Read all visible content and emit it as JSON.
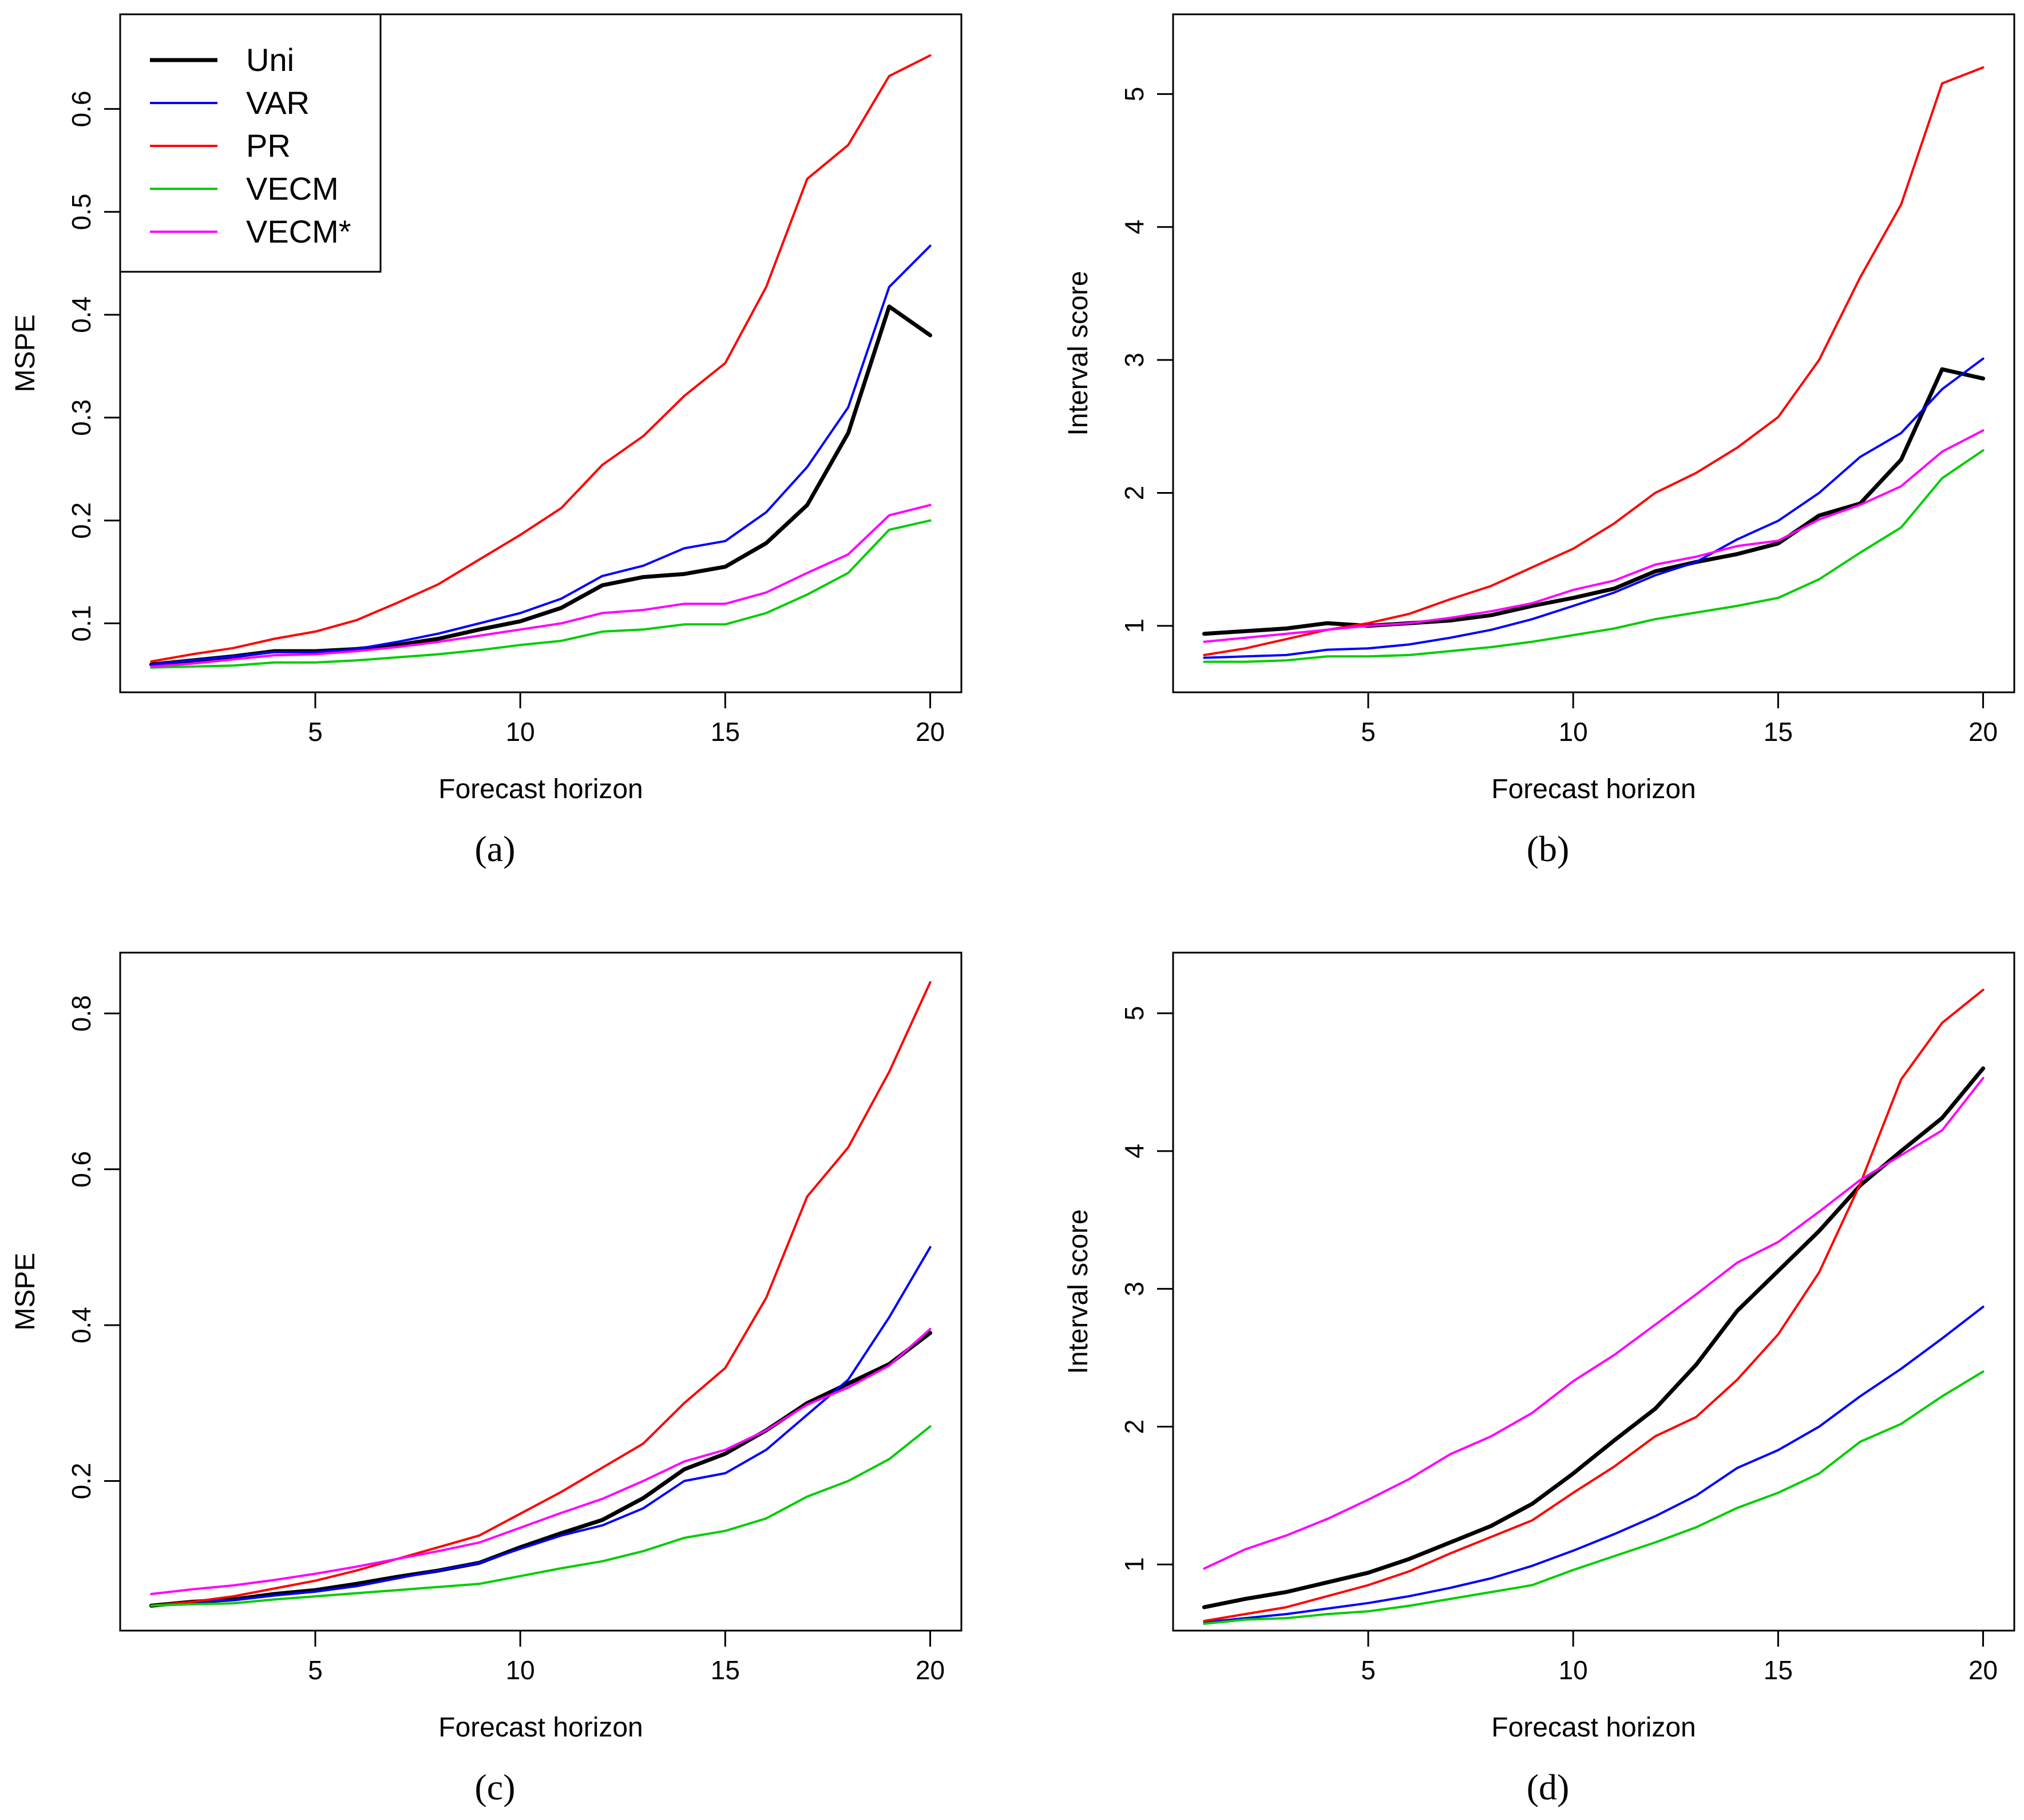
{
  "legend": {
    "entries": [
      {
        "name": "Uni",
        "color": "#000000"
      },
      {
        "name": "VAR",
        "color": "#0000ff"
      },
      {
        "name": "PR",
        "color": "#ff0000"
      },
      {
        "name": "VECM",
        "color": "#00cd00"
      },
      {
        "name": "VECM*",
        "color": "#ff00ff"
      }
    ]
  },
  "chart_data": [
    {
      "type": "line",
      "panel_label": "(a)",
      "xlabel": "Forecast horizon",
      "ylabel": "MSPE",
      "xlim": [
        0.24,
        20.76
      ],
      "ylim": [
        0.033,
        0.692
      ],
      "xticks": [
        5,
        10,
        15,
        20
      ],
      "yticks": [
        0.1,
        0.2,
        0.3,
        0.4,
        0.5,
        0.6
      ],
      "legend_position": "top-left",
      "x": [
        1,
        2,
        3,
        4,
        5,
        6,
        7,
        8,
        9,
        10,
        11,
        12,
        13,
        14,
        15,
        16,
        17,
        18,
        19,
        20
      ],
      "series": [
        {
          "name": "Uni",
          "color": "#000000",
          "width": 7,
          "values": [
            0.06,
            0.064,
            0.068,
            0.073,
            0.073,
            0.075,
            0.079,
            0.085,
            0.094,
            0.102,
            0.115,
            0.137,
            0.145,
            0.148,
            0.155,
            0.178,
            0.215,
            0.285,
            0.408,
            0.38
          ]
        },
        {
          "name": "VAR",
          "color": "#0000ff",
          "width": 4,
          "values": [
            0.06,
            0.064,
            0.068,
            0.072,
            0.072,
            0.075,
            0.082,
            0.09,
            0.1,
            0.11,
            0.124,
            0.146,
            0.156,
            0.173,
            0.18,
            0.208,
            0.252,
            0.31,
            0.427,
            0.467
          ]
        },
        {
          "name": "PR",
          "color": "#ff0000",
          "width": 4,
          "values": [
            0.063,
            0.07,
            0.076,
            0.085,
            0.092,
            0.103,
            0.12,
            0.138,
            0.162,
            0.186,
            0.212,
            0.254,
            0.282,
            0.321,
            0.353,
            0.427,
            0.532,
            0.565,
            0.632,
            0.652
          ]
        },
        {
          "name": "VECM",
          "color": "#00cd00",
          "width": 4,
          "values": [
            0.057,
            0.058,
            0.059,
            0.062,
            0.062,
            0.064,
            0.067,
            0.07,
            0.074,
            0.079,
            0.083,
            0.092,
            0.094,
            0.099,
            0.099,
            0.11,
            0.128,
            0.149,
            0.191,
            0.2
          ]
        },
        {
          "name": "VECM*",
          "color": "#ff00ff",
          "width": 4,
          "values": [
            0.058,
            0.061,
            0.065,
            0.069,
            0.07,
            0.073,
            0.077,
            0.082,
            0.088,
            0.094,
            0.1,
            0.11,
            0.113,
            0.119,
            0.119,
            0.13,
            0.149,
            0.167,
            0.205,
            0.215
          ]
        }
      ]
    },
    {
      "type": "line",
      "panel_label": "(b)",
      "xlabel": "Forecast horizon",
      "ylabel": "Interval score",
      "xlim": [
        0.24,
        20.76
      ],
      "ylim": [
        0.5,
        5.6
      ],
      "xticks": [
        5,
        10,
        15,
        20
      ],
      "yticks": [
        1,
        2,
        3,
        4,
        5
      ],
      "x": [
        1,
        2,
        3,
        4,
        5,
        6,
        7,
        8,
        9,
        10,
        11,
        12,
        13,
        14,
        15,
        16,
        17,
        18,
        19,
        20
      ],
      "series": [
        {
          "name": "Uni",
          "color": "#000000",
          "width": 7,
          "values": [
            0.94,
            0.96,
            0.98,
            1.02,
            1.0,
            1.02,
            1.04,
            1.08,
            1.15,
            1.21,
            1.28,
            1.41,
            1.48,
            1.54,
            1.62,
            1.83,
            1.92,
            2.25,
            2.93,
            2.86
          ]
        },
        {
          "name": "VAR",
          "color": "#0000ff",
          "width": 4,
          "values": [
            0.76,
            0.77,
            0.78,
            0.82,
            0.83,
            0.86,
            0.91,
            0.97,
            1.05,
            1.15,
            1.25,
            1.38,
            1.48,
            1.65,
            1.79,
            2.0,
            2.27,
            2.45,
            2.78,
            3.01
          ]
        },
        {
          "name": "PR",
          "color": "#ff0000",
          "width": 4,
          "values": [
            0.78,
            0.83,
            0.9,
            0.97,
            1.02,
            1.09,
            1.2,
            1.3,
            1.44,
            1.58,
            1.77,
            2.0,
            2.15,
            2.34,
            2.57,
            3.0,
            3.62,
            4.17,
            5.08,
            5.2
          ]
        },
        {
          "name": "VECM",
          "color": "#00cd00",
          "width": 4,
          "values": [
            0.73,
            0.73,
            0.74,
            0.77,
            0.77,
            0.78,
            0.81,
            0.84,
            0.88,
            0.93,
            0.98,
            1.05,
            1.1,
            1.15,
            1.21,
            1.35,
            1.55,
            1.74,
            2.11,
            2.32
          ]
        },
        {
          "name": "VECM*",
          "color": "#ff00ff",
          "width": 4,
          "values": [
            0.88,
            0.91,
            0.94,
            0.97,
            1.0,
            1.02,
            1.06,
            1.11,
            1.17,
            1.27,
            1.34,
            1.46,
            1.52,
            1.6,
            1.64,
            1.8,
            1.91,
            2.05,
            2.31,
            2.47
          ]
        }
      ]
    },
    {
      "type": "line",
      "panel_label": "(c)",
      "xlabel": "Forecast horizon",
      "ylabel": "MSPE",
      "xlim": [
        0.24,
        20.76
      ],
      "ylim": [
        0.008,
        0.878
      ],
      "xticks": [
        5,
        10,
        15,
        20
      ],
      "yticks": [
        0.2,
        0.4,
        0.6,
        0.8
      ],
      "x": [
        1,
        2,
        3,
        4,
        5,
        6,
        7,
        8,
        9,
        10,
        11,
        12,
        13,
        14,
        15,
        16,
        17,
        18,
        19,
        20
      ],
      "series": [
        {
          "name": "Uni",
          "color": "#000000",
          "width": 7,
          "values": [
            0.04,
            0.045,
            0.048,
            0.055,
            0.06,
            0.068,
            0.077,
            0.085,
            0.095,
            0.115,
            0.133,
            0.15,
            0.178,
            0.215,
            0.235,
            0.265,
            0.3,
            0.325,
            0.35,
            0.39
          ]
        },
        {
          "name": "VAR",
          "color": "#0000ff",
          "width": 4,
          "values": [
            0.04,
            0.045,
            0.047,
            0.053,
            0.058,
            0.065,
            0.075,
            0.085,
            0.095,
            0.113,
            0.13,
            0.143,
            0.165,
            0.2,
            0.21,
            0.24,
            0.285,
            0.33,
            0.41,
            0.5
          ]
        },
        {
          "name": "PR",
          "color": "#ff0000",
          "width": 4,
          "values": [
            0.04,
            0.045,
            0.052,
            0.062,
            0.072,
            0.085,
            0.1,
            0.115,
            0.13,
            0.158,
            0.186,
            0.217,
            0.248,
            0.3,
            0.345,
            0.435,
            0.565,
            0.628,
            0.725,
            0.84
          ]
        },
        {
          "name": "VECM",
          "color": "#00cd00",
          "width": 4,
          "values": [
            0.04,
            0.042,
            0.043,
            0.048,
            0.052,
            0.056,
            0.06,
            0.064,
            0.068,
            0.078,
            0.088,
            0.097,
            0.11,
            0.127,
            0.136,
            0.152,
            0.18,
            0.2,
            0.228,
            0.27
          ]
        },
        {
          "name": "VECM*",
          "color": "#ff00ff",
          "width": 4,
          "values": [
            0.055,
            0.061,
            0.066,
            0.073,
            0.081,
            0.09,
            0.1,
            0.11,
            0.121,
            0.14,
            0.159,
            0.177,
            0.2,
            0.225,
            0.24,
            0.265,
            0.298,
            0.32,
            0.348,
            0.395
          ]
        }
      ]
    },
    {
      "type": "line",
      "panel_label": "(d)",
      "xlabel": "Forecast horizon",
      "ylabel": "Interval score",
      "xlim": [
        0.24,
        20.76
      ],
      "ylim": [
        0.52,
        5.44
      ],
      "xticks": [
        5,
        10,
        15,
        20
      ],
      "yticks": [
        1,
        2,
        3,
        4,
        5
      ],
      "x": [
        1,
        2,
        3,
        4,
        5,
        6,
        7,
        8,
        9,
        10,
        11,
        12,
        13,
        14,
        15,
        16,
        17,
        18,
        19,
        20
      ],
      "series": [
        {
          "name": "Uni",
          "color": "#000000",
          "width": 7,
          "values": [
            0.69,
            0.75,
            0.8,
            0.87,
            0.94,
            1.04,
            1.16,
            1.28,
            1.44,
            1.66,
            1.9,
            2.13,
            2.45,
            2.84,
            3.13,
            3.42,
            3.75,
            4.0,
            4.24,
            4.6
          ]
        },
        {
          "name": "VAR",
          "color": "#0000ff",
          "width": 4,
          "values": [
            0.58,
            0.61,
            0.64,
            0.68,
            0.72,
            0.77,
            0.83,
            0.9,
            0.99,
            1.1,
            1.22,
            1.35,
            1.5,
            1.7,
            1.83,
            2.0,
            2.22,
            2.42,
            2.64,
            2.87
          ]
        },
        {
          "name": "PR",
          "color": "#ff0000",
          "width": 4,
          "values": [
            0.59,
            0.64,
            0.69,
            0.77,
            0.85,
            0.95,
            1.08,
            1.2,
            1.32,
            1.52,
            1.71,
            1.93,
            2.07,
            2.34,
            2.67,
            3.12,
            3.76,
            4.52,
            4.93,
            5.17
          ]
        },
        {
          "name": "VECM",
          "color": "#00cd00",
          "width": 4,
          "values": [
            0.57,
            0.6,
            0.61,
            0.64,
            0.66,
            0.7,
            0.75,
            0.8,
            0.85,
            0.96,
            1.06,
            1.16,
            1.27,
            1.41,
            1.52,
            1.66,
            1.89,
            2.02,
            2.22,
            2.4
          ]
        },
        {
          "name": "VECM*",
          "color": "#ff00ff",
          "width": 4,
          "values": [
            0.97,
            1.11,
            1.21,
            1.33,
            1.47,
            1.62,
            1.8,
            1.93,
            2.1,
            2.33,
            2.52,
            2.74,
            2.96,
            3.19,
            3.34,
            3.56,
            3.79,
            3.97,
            4.15,
            4.53
          ]
        }
      ]
    }
  ]
}
